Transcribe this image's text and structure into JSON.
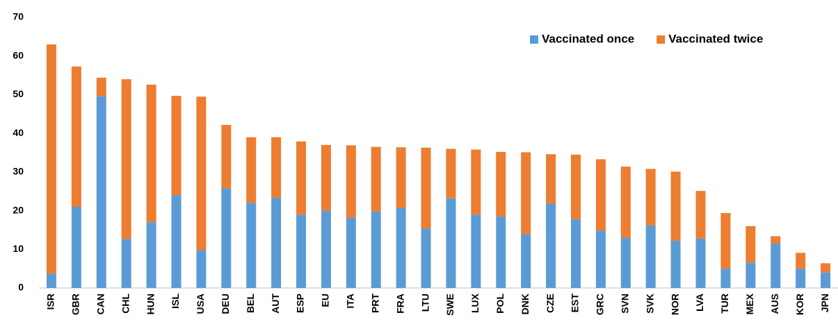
{
  "chart_data": {
    "type": "stacked_bar",
    "categories": [
      "ISR",
      "GBR",
      "CAN",
      "CHL",
      "HUN",
      "ISL",
      "USA",
      "DEU",
      "BEL",
      "AUT",
      "ESP",
      "EU",
      "ITA",
      "PRT",
      "FRA",
      "LTU",
      "SWE",
      "LUX",
      "POL",
      "DNK",
      "CZE",
      "EST",
      "GRC",
      "SVN",
      "SVK",
      "NOR",
      "LVA",
      "TUR",
      "MEX",
      "AUS",
      "KOR",
      "JPN"
    ],
    "series": [
      {
        "name": "Vaccinated once",
        "color": "#5b9bd5",
        "values": [
          3.7,
          21,
          49.6,
          12.7,
          17,
          24,
          9.8,
          25.8,
          22,
          23.4,
          19,
          20,
          18.2,
          19.8,
          20.7,
          15.4,
          23.2,
          19,
          18.5,
          13.9,
          21.8,
          17.8,
          14.8,
          13,
          16.2,
          12.2,
          12.8,
          5,
          6.6,
          11.5,
          5,
          4
        ]
      },
      {
        "name": "Vaccinated twice",
        "color": "#ed7d31",
        "values": [
          59.3,
          36.3,
          4.8,
          41.3,
          35.6,
          25.7,
          39.7,
          16.4,
          17,
          15.6,
          18.9,
          17,
          18.7,
          16.7,
          15.7,
          20.9,
          12.8,
          16.8,
          16.7,
          21.2,
          12.8,
          16.7,
          18.5,
          18.4,
          14.6,
          17.9,
          12.3,
          14.4,
          9.4,
          1.9,
          4.1,
          2.4
        ]
      }
    ],
    "ylim": [
      0,
      70
    ],
    "yticks": [
      0,
      10,
      20,
      30,
      40,
      50,
      60,
      70
    ],
    "grid": false,
    "legend": "top-right"
  }
}
